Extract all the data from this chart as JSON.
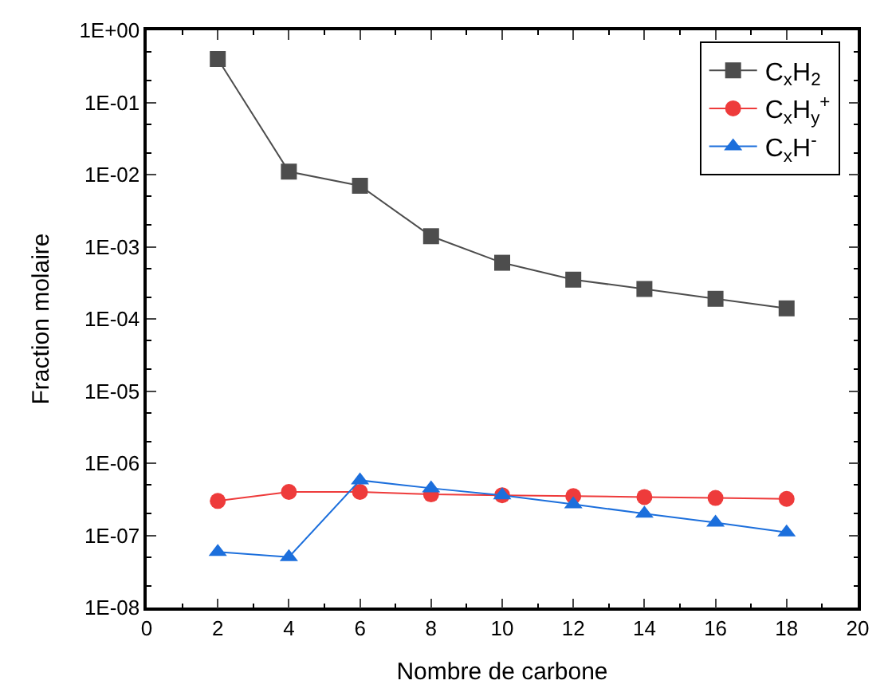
{
  "chart_data": {
    "type": "line",
    "xlabel": "Nombre de carbone",
    "ylabel": "Fraction molaire",
    "x": [
      2,
      4,
      6,
      8,
      10,
      12,
      14,
      16,
      18
    ],
    "series": [
      {
        "name": "C$_{x}$H$_{2}$",
        "color": "#4d4d4d",
        "marker": "square",
        "values": [
          0.4,
          0.011,
          0.007,
          0.0014,
          0.0006,
          0.00035,
          0.00026,
          0.00019,
          0.00014
        ]
      },
      {
        "name": "C$_{x}$H$_{y}$$^{+}$",
        "color": "#ee3b3b",
        "marker": "circle",
        "values": [
          3e-07,
          4e-07,
          4e-07,
          3.7e-07,
          3.6e-07,
          3.5e-07,
          3.4e-07,
          3.3e-07,
          3.2e-07
        ]
      },
      {
        "name": "C$_{x}$H$^{-}$",
        "color": "#1c6fdc",
        "marker": "triangle",
        "values": [
          5.9e-08,
          5e-08,
          5.8e-07,
          4.5e-07,
          3.6e-07,
          2.7e-07,
          2e-07,
          1.5e-07,
          1.1e-07
        ]
      }
    ],
    "xlim": [
      0,
      20
    ],
    "xticks": [
      0,
      2,
      4,
      6,
      8,
      10,
      12,
      14,
      16,
      18,
      20
    ],
    "ylim": [
      1e-08,
      1
    ],
    "log": true,
    "yticks": [
      {
        "value": 1e-08,
        "label": "1E-08"
      },
      {
        "value": 1e-07,
        "label": "1E-07"
      },
      {
        "value": 1e-06,
        "label": "1E-06"
      },
      {
        "value": 1e-05,
        "label": "1E-05"
      },
      {
        "value": 0.0001,
        "label": "1E-04"
      },
      {
        "value": 0.001,
        "label": "1E-03"
      },
      {
        "value": 0.01,
        "label": "1E-02"
      },
      {
        "value": 0.1,
        "label": "1E-01"
      },
      {
        "value": 1,
        "label": "1E+00"
      }
    ],
    "legend": "top right",
    "line_style": "solid"
  }
}
